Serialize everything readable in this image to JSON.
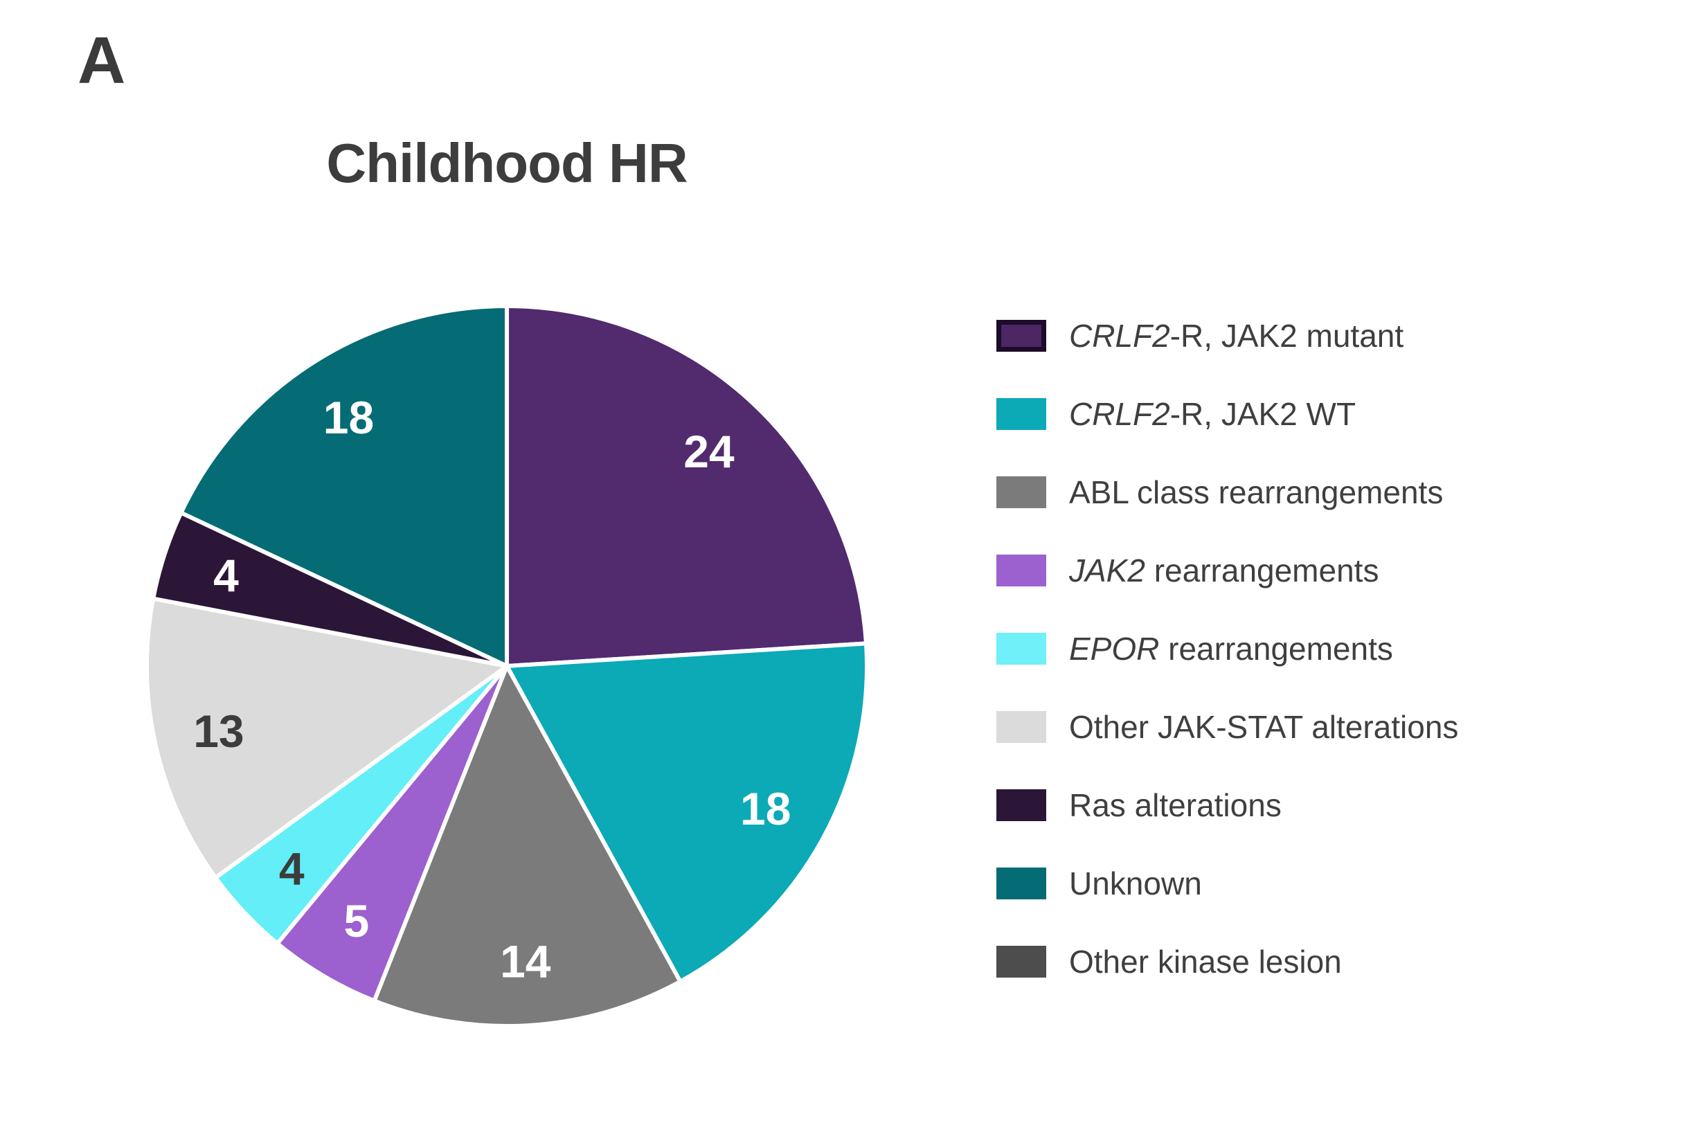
{
  "panel_label": "A",
  "title": "Childhood HR",
  "colors": {
    "background": "#FFFFFF",
    "title_text": "#3D3D3D",
    "panel_label_text": "#3B3B3B",
    "legend_text": "#3F3F3F",
    "slice_separator": "#FFFFFF"
  },
  "chart_data": {
    "type": "pie",
    "title": "Childhood HR",
    "total": 100,
    "start_angle_deg": 0,
    "direction": "clockwise",
    "value_labels_shown": true,
    "legend_position": "right",
    "slices": [
      {
        "name": "CRLF2-R, JAK2 mutant",
        "value": 24,
        "color": "#522A6E",
        "label_color": "#FFFFFF"
      },
      {
        "name": "CRLF2-R, JAK2 WT",
        "value": 18,
        "color": "#0CA9B6",
        "label_color": "#FFFFFF"
      },
      {
        "name": "ABL class rearrangements",
        "value": 14,
        "color": "#7B7B7B",
        "label_color": "#FFFFFF"
      },
      {
        "name": "JAK2 rearrangements",
        "value": 5,
        "color": "#9C60CF",
        "label_color": "#FFFFFF"
      },
      {
        "name": "EPOR rearrangements",
        "value": 4,
        "color": "#63EEF8",
        "label_color": "#3C3C3C"
      },
      {
        "name": "Other JAK-STAT alterations",
        "value": 13,
        "color": "#DBDBDB",
        "label_color": "#3C3C3C"
      },
      {
        "name": "Ras alterations",
        "value": 4,
        "color": "#2B1638",
        "label_color": "#FFFFFF"
      },
      {
        "name": "Unknown",
        "value": 18,
        "color": "#056C75",
        "label_color": "#FFFFFF"
      }
    ],
    "legend_items": [
      {
        "swatch": "#4C2763",
        "swatch_border": "#1C0B2B",
        "segments": [
          {
            "text": "CRLF2",
            "italic": true
          },
          {
            "text": "-R, JAK2 mutant"
          }
        ]
      },
      {
        "swatch": "#0CA9B6",
        "segments": [
          {
            "text": "CRLF2",
            "italic": true
          },
          {
            "text": "-R, JAK2 WT"
          }
        ]
      },
      {
        "swatch": "#7B7B7B",
        "segments": [
          {
            "text": "ABL class rearrangements"
          }
        ]
      },
      {
        "swatch": "#9C60CF",
        "segments": [
          {
            "text": "JAK2",
            "italic": true
          },
          {
            "text": " rearrangements"
          }
        ]
      },
      {
        "swatch": "#70F0F8",
        "segments": [
          {
            "text": "EPOR",
            "italic": true
          },
          {
            "text": " rearrangements"
          }
        ]
      },
      {
        "swatch": "#DBDBDB",
        "segments": [
          {
            "text": "Other JAK-STAT alterations"
          }
        ]
      },
      {
        "swatch": "#2B1638",
        "segments": [
          {
            "text": "Ras alterations"
          }
        ]
      },
      {
        "swatch": "#056C75",
        "segments": [
          {
            "text": "Unknown"
          }
        ]
      },
      {
        "swatch": "#4D4D4D",
        "segments": [
          {
            "text": "Other kinase lesion"
          }
        ]
      }
    ]
  }
}
